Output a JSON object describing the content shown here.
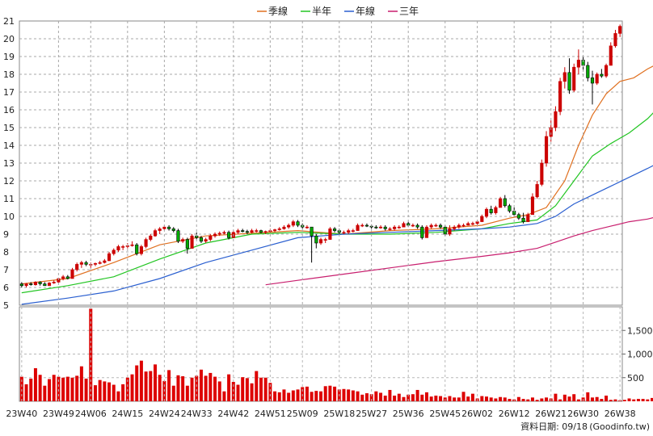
{
  "chart_data": [
    {
      "type": "candlestick",
      "legend": [
        {
          "name": "季線",
          "color": "#e07020"
        },
        {
          "name": "半年",
          "color": "#22c522"
        },
        {
          "name": "年線",
          "color": "#2a5fd0"
        },
        {
          "name": "三年",
          "color": "#c81e6e"
        }
      ],
      "ylim": [
        5,
        21
      ],
      "yticks": [
        "5",
        "6",
        "7",
        "8",
        "9",
        "10",
        "11",
        "12",
        "13",
        "14",
        "15",
        "16",
        "17",
        "18",
        "19",
        "20",
        "21"
      ],
      "xticks": [
        "23W40",
        "23W49",
        "24W06",
        "24W15",
        "24W24",
        "24W33",
        "24W42",
        "24W51",
        "25W09",
        "25W18",
        "25W27",
        "25W36",
        "25W45",
        "26W02",
        "26W12",
        "26W21",
        "26W30",
        "26W38"
      ],
      "grid": true,
      "up_color": "#cc0000",
      "down_color": "#00aa00",
      "candles": [
        {
          "o": 6.2,
          "h": 6.3,
          "l": 6.0,
          "c": 6.1
        },
        {
          "o": 6.1,
          "h": 6.25,
          "l": 6.0,
          "c": 6.2
        },
        {
          "o": 6.2,
          "h": 6.3,
          "l": 6.1,
          "c": 6.15
        },
        {
          "o": 6.15,
          "h": 6.35,
          "l": 6.1,
          "c": 6.3
        },
        {
          "o": 6.3,
          "h": 6.35,
          "l": 6.1,
          "c": 6.2
        },
        {
          "o": 6.2,
          "h": 6.3,
          "l": 6.1,
          "c": 6.1
        },
        {
          "o": 6.1,
          "h": 6.3,
          "l": 6.1,
          "c": 6.25
        },
        {
          "o": 6.25,
          "h": 6.4,
          "l": 6.2,
          "c": 6.3
        },
        {
          "o": 6.3,
          "h": 6.55,
          "l": 6.25,
          "c": 6.5
        },
        {
          "o": 6.5,
          "h": 6.7,
          "l": 6.4,
          "c": 6.6
        },
        {
          "o": 6.6,
          "h": 6.7,
          "l": 6.45,
          "c": 6.5
        },
        {
          "o": 6.5,
          "h": 7.1,
          "l": 6.5,
          "c": 7.0
        },
        {
          "o": 7.0,
          "h": 7.4,
          "l": 6.9,
          "c": 7.3
        },
        {
          "o": 7.3,
          "h": 7.5,
          "l": 7.1,
          "c": 7.4
        },
        {
          "o": 7.4,
          "h": 7.5,
          "l": 7.2,
          "c": 7.3
        },
        {
          "o": 7.3,
          "h": 7.4,
          "l": 7.1,
          "c": 7.3
        },
        {
          "o": 7.3,
          "h": 7.4,
          "l": 7.2,
          "c": 7.35
        },
        {
          "o": 7.35,
          "h": 7.5,
          "l": 7.3,
          "c": 7.4
        },
        {
          "o": 7.4,
          "h": 7.6,
          "l": 7.35,
          "c": 7.5
        },
        {
          "o": 7.5,
          "h": 8.0,
          "l": 7.5,
          "c": 7.9
        },
        {
          "o": 7.9,
          "h": 8.2,
          "l": 7.8,
          "c": 8.1
        },
        {
          "o": 8.1,
          "h": 8.4,
          "l": 8.0,
          "c": 8.3
        },
        {
          "o": 8.3,
          "h": 8.4,
          "l": 8.1,
          "c": 8.3
        },
        {
          "o": 8.3,
          "h": 8.5,
          "l": 8.2,
          "c": 8.35
        },
        {
          "o": 8.35,
          "h": 8.6,
          "l": 8.3,
          "c": 8.4
        },
        {
          "o": 8.4,
          "h": 8.5,
          "l": 7.8,
          "c": 7.9
        },
        {
          "o": 7.9,
          "h": 8.4,
          "l": 7.8,
          "c": 8.3
        },
        {
          "o": 8.3,
          "h": 8.8,
          "l": 8.2,
          "c": 8.7
        },
        {
          "o": 8.7,
          "h": 9.0,
          "l": 8.6,
          "c": 8.9
        },
        {
          "o": 8.9,
          "h": 9.3,
          "l": 8.85,
          "c": 9.2
        },
        {
          "o": 9.2,
          "h": 9.4,
          "l": 9.0,
          "c": 9.3
        },
        {
          "o": 9.3,
          "h": 9.5,
          "l": 9.2,
          "c": 9.4
        },
        {
          "o": 9.4,
          "h": 9.5,
          "l": 9.2,
          "c": 9.3
        },
        {
          "o": 9.3,
          "h": 9.4,
          "l": 9.1,
          "c": 9.2
        },
        {
          "o": 9.2,
          "h": 9.3,
          "l": 8.5,
          "c": 8.6
        },
        {
          "o": 8.6,
          "h": 8.8,
          "l": 8.5,
          "c": 8.7
        },
        {
          "o": 8.7,
          "h": 8.8,
          "l": 7.9,
          "c": 8.2
        },
        {
          "o": 8.2,
          "h": 9.0,
          "l": 8.2,
          "c": 8.9
        },
        {
          "o": 8.9,
          "h": 9.1,
          "l": 8.7,
          "c": 8.8
        },
        {
          "o": 8.8,
          "h": 8.9,
          "l": 8.5,
          "c": 8.6
        },
        {
          "o": 8.6,
          "h": 8.8,
          "l": 8.5,
          "c": 8.7
        },
        {
          "o": 8.7,
          "h": 9.0,
          "l": 8.6,
          "c": 8.9
        },
        {
          "o": 8.9,
          "h": 9.1,
          "l": 8.8,
          "c": 9.0
        },
        {
          "o": 9.0,
          "h": 9.15,
          "l": 8.9,
          "c": 9.05
        },
        {
          "o": 9.05,
          "h": 9.2,
          "l": 9.0,
          "c": 9.1
        },
        {
          "o": 9.1,
          "h": 9.2,
          "l": 8.7,
          "c": 8.8
        },
        {
          "o": 8.8,
          "h": 9.2,
          "l": 8.8,
          "c": 9.1
        },
        {
          "o": 9.1,
          "h": 9.3,
          "l": 9.0,
          "c": 9.2
        },
        {
          "o": 9.2,
          "h": 9.3,
          "l": 9.1,
          "c": 9.15
        },
        {
          "o": 9.15,
          "h": 9.25,
          "l": 9.0,
          "c": 9.1
        },
        {
          "o": 9.1,
          "h": 9.3,
          "l": 9.05,
          "c": 9.2
        },
        {
          "o": 9.2,
          "h": 9.3,
          "l": 9.1,
          "c": 9.2
        },
        {
          "o": 9.2,
          "h": 9.25,
          "l": 9.05,
          "c": 9.1
        },
        {
          "o": 9.1,
          "h": 9.2,
          "l": 9.0,
          "c": 9.15
        },
        {
          "o": 9.15,
          "h": 9.3,
          "l": 9.1,
          "c": 9.2
        },
        {
          "o": 9.2,
          "h": 9.3,
          "l": 9.1,
          "c": 9.25
        },
        {
          "o": 9.25,
          "h": 9.4,
          "l": 9.2,
          "c": 9.3
        },
        {
          "o": 9.3,
          "h": 9.5,
          "l": 9.25,
          "c": 9.4
        },
        {
          "o": 9.4,
          "h": 9.6,
          "l": 9.3,
          "c": 9.5
        },
        {
          "o": 9.5,
          "h": 9.8,
          "l": 9.4,
          "c": 9.7
        },
        {
          "o": 9.7,
          "h": 9.8,
          "l": 9.4,
          "c": 9.5
        },
        {
          "o": 9.5,
          "h": 9.6,
          "l": 9.3,
          "c": 9.4
        },
        {
          "o": 9.4,
          "h": 9.5,
          "l": 9.3,
          "c": 9.4
        },
        {
          "o": 9.4,
          "h": 9.4,
          "l": 7.4,
          "c": 8.9
        },
        {
          "o": 8.9,
          "h": 9.0,
          "l": 8.2,
          "c": 8.5
        },
        {
          "o": 8.5,
          "h": 8.8,
          "l": 8.4,
          "c": 8.7
        },
        {
          "o": 8.7,
          "h": 8.8,
          "l": 8.5,
          "c": 8.7
        },
        {
          "o": 8.7,
          "h": 9.4,
          "l": 8.7,
          "c": 9.3
        },
        {
          "o": 9.3,
          "h": 9.4,
          "l": 9.1,
          "c": 9.2
        },
        {
          "o": 9.2,
          "h": 9.3,
          "l": 9.0,
          "c": 9.1
        },
        {
          "o": 9.1,
          "h": 9.2,
          "l": 9.0,
          "c": 9.1
        },
        {
          "o": 9.1,
          "h": 9.3,
          "l": 9.0,
          "c": 9.2
        },
        {
          "o": 9.2,
          "h": 9.3,
          "l": 9.1,
          "c": 9.2
        },
        {
          "o": 9.2,
          "h": 9.6,
          "l": 9.2,
          "c": 9.5
        },
        {
          "o": 9.5,
          "h": 9.6,
          "l": 9.4,
          "c": 9.5
        },
        {
          "o": 9.5,
          "h": 9.6,
          "l": 9.4,
          "c": 9.45
        },
        {
          "o": 9.45,
          "h": 9.55,
          "l": 9.3,
          "c": 9.4
        },
        {
          "o": 9.4,
          "h": 9.5,
          "l": 9.3,
          "c": 9.35
        },
        {
          "o": 9.35,
          "h": 9.5,
          "l": 9.3,
          "c": 9.4
        },
        {
          "o": 9.4,
          "h": 9.5,
          "l": 9.2,
          "c": 9.3
        },
        {
          "o": 9.3,
          "h": 9.4,
          "l": 9.2,
          "c": 9.3
        },
        {
          "o": 9.3,
          "h": 9.5,
          "l": 9.2,
          "c": 9.4
        },
        {
          "o": 9.4,
          "h": 9.5,
          "l": 9.3,
          "c": 9.4
        },
        {
          "o": 9.4,
          "h": 9.7,
          "l": 9.4,
          "c": 9.6
        },
        {
          "o": 9.6,
          "h": 9.7,
          "l": 9.4,
          "c": 9.5
        },
        {
          "o": 9.5,
          "h": 9.6,
          "l": 9.4,
          "c": 9.5
        },
        {
          "o": 9.5,
          "h": 9.6,
          "l": 9.3,
          "c": 9.4
        },
        {
          "o": 9.4,
          "h": 9.5,
          "l": 8.7,
          "c": 8.8
        },
        {
          "o": 8.8,
          "h": 9.5,
          "l": 8.8,
          "c": 9.4
        },
        {
          "o": 9.4,
          "h": 9.6,
          "l": 9.3,
          "c": 9.5
        },
        {
          "o": 9.5,
          "h": 9.6,
          "l": 9.4,
          "c": 9.5
        },
        {
          "o": 9.5,
          "h": 9.6,
          "l": 9.3,
          "c": 9.4
        },
        {
          "o": 9.4,
          "h": 9.5,
          "l": 8.9,
          "c": 9.0
        },
        {
          "o": 9.0,
          "h": 9.5,
          "l": 8.9,
          "c": 9.3
        },
        {
          "o": 9.3,
          "h": 9.5,
          "l": 9.2,
          "c": 9.4
        },
        {
          "o": 9.4,
          "h": 9.6,
          "l": 9.3,
          "c": 9.5
        },
        {
          "o": 9.5,
          "h": 9.6,
          "l": 9.4,
          "c": 9.5
        },
        {
          "o": 9.5,
          "h": 9.7,
          "l": 9.5,
          "c": 9.6
        },
        {
          "o": 9.6,
          "h": 9.7,
          "l": 9.5,
          "c": 9.6
        },
        {
          "o": 9.6,
          "h": 9.8,
          "l": 9.5,
          "c": 9.7
        },
        {
          "o": 9.7,
          "h": 10.1,
          "l": 9.7,
          "c": 10.0
        },
        {
          "o": 10.0,
          "h": 10.5,
          "l": 9.9,
          "c": 10.4
        },
        {
          "o": 10.4,
          "h": 10.6,
          "l": 10.1,
          "c": 10.2
        },
        {
          "o": 10.2,
          "h": 10.6,
          "l": 10.1,
          "c": 10.5
        },
        {
          "o": 10.5,
          "h": 11.1,
          "l": 10.5,
          "c": 11.0
        },
        {
          "o": 11.0,
          "h": 11.2,
          "l": 10.5,
          "c": 10.6
        },
        {
          "o": 10.6,
          "h": 10.7,
          "l": 10.2,
          "c": 10.3
        },
        {
          "o": 10.3,
          "h": 10.5,
          "l": 10.0,
          "c": 10.1
        },
        {
          "o": 10.1,
          "h": 10.2,
          "l": 9.8,
          "c": 9.9
        },
        {
          "o": 9.9,
          "h": 10.2,
          "l": 9.6,
          "c": 9.7
        },
        {
          "o": 9.7,
          "h": 10.2,
          "l": 9.7,
          "c": 10.1
        },
        {
          "o": 10.1,
          "h": 11.3,
          "l": 10.1,
          "c": 11.1
        },
        {
          "o": 11.1,
          "h": 12.0,
          "l": 11.0,
          "c": 11.8
        },
        {
          "o": 11.8,
          "h": 13.2,
          "l": 11.7,
          "c": 13.0
        },
        {
          "o": 13.0,
          "h": 14.8,
          "l": 12.8,
          "c": 14.5
        },
        {
          "o": 14.5,
          "h": 15.4,
          "l": 14.2,
          "c": 15.0
        },
        {
          "o": 15.0,
          "h": 16.2,
          "l": 14.8,
          "c": 15.9
        },
        {
          "o": 15.9,
          "h": 17.8,
          "l": 15.7,
          "c": 17.6
        },
        {
          "o": 17.6,
          "h": 18.4,
          "l": 17.2,
          "c": 18.1
        },
        {
          "o": 18.1,
          "h": 18.9,
          "l": 16.9,
          "c": 17.1
        },
        {
          "o": 17.1,
          "h": 18.6,
          "l": 17.0,
          "c": 18.4
        },
        {
          "o": 18.4,
          "h": 19.4,
          "l": 18.0,
          "c": 18.8
        },
        {
          "o": 18.8,
          "h": 19.0,
          "l": 18.2,
          "c": 18.5
        },
        {
          "o": 18.5,
          "h": 18.7,
          "l": 17.6,
          "c": 17.8
        },
        {
          "o": 17.8,
          "h": 18.2,
          "l": 16.3,
          "c": 17.5
        },
        {
          "o": 17.5,
          "h": 18.1,
          "l": 17.4,
          "c": 18.0
        },
        {
          "o": 18.0,
          "h": 18.3,
          "l": 17.8,
          "c": 17.9
        },
        {
          "o": 17.9,
          "h": 18.6,
          "l": 17.8,
          "c": 18.5
        },
        {
          "o": 18.5,
          "h": 19.8,
          "l": 18.5,
          "c": 19.6
        },
        {
          "o": 19.6,
          "h": 20.5,
          "l": 19.5,
          "c": 20.3
        },
        {
          "o": 20.3,
          "h": 20.8,
          "l": 20.1,
          "c": 20.7
        }
      ],
      "ma_lines": [
        {
          "name": "季線",
          "color": "#e07020",
          "x": [
            0,
            10,
            20,
            30,
            40,
            50,
            60,
            70,
            80,
            90,
            100,
            106,
            110,
            114,
            118,
            121,
            124,
            127,
            130,
            133,
            136,
            139
          ],
          "y": [
            6.2,
            6.5,
            7.4,
            8.4,
            8.9,
            9.05,
            9.2,
            9.0,
            9.2,
            9.3,
            9.5,
            9.9,
            10.1,
            10.5,
            12.0,
            14.0,
            15.7,
            16.9,
            17.6,
            17.8,
            18.3,
            18.7
          ]
        },
        {
          "name": "半年",
          "color": "#22c522",
          "x": [
            0,
            10,
            20,
            30,
            40,
            50,
            60,
            70,
            80,
            90,
            100,
            106,
            112,
            116,
            120,
            124,
            128,
            132,
            136,
            139
          ],
          "y": [
            5.7,
            6.1,
            6.6,
            7.6,
            8.5,
            9.0,
            9.1,
            9.0,
            9.0,
            9.1,
            9.3,
            9.6,
            9.8,
            10.6,
            12.0,
            13.4,
            14.1,
            14.7,
            15.5,
            16.3
          ]
        },
        {
          "name": "年線",
          "color": "#2a5fd0",
          "x": [
            0,
            10,
            20,
            30,
            40,
            50,
            60,
            70,
            80,
            90,
            100,
            106,
            112,
            116,
            120,
            124,
            128,
            132,
            136,
            139
          ],
          "y": [
            5.05,
            5.4,
            5.8,
            6.5,
            7.4,
            8.1,
            8.8,
            9.0,
            9.1,
            9.2,
            9.3,
            9.4,
            9.6,
            10.0,
            10.7,
            11.2,
            11.7,
            12.2,
            12.7,
            13.1
          ]
        },
        {
          "name": "三年",
          "color": "#c81e6e",
          "x": [
            53,
            60,
            70,
            80,
            90,
            100,
            106,
            112,
            116,
            120,
            124,
            128,
            132,
            136,
            139
          ],
          "y": [
            6.15,
            6.4,
            6.75,
            7.1,
            7.45,
            7.75,
            7.95,
            8.2,
            8.55,
            8.9,
            9.2,
            9.45,
            9.7,
            9.85,
            10.05
          ]
        }
      ]
    },
    {
      "type": "bar",
      "ylim": [
        0,
        2000
      ],
      "yticks": [
        "500",
        "1,000",
        "1,500"
      ],
      "color": "#dd0000",
      "values": [
        520,
        360,
        480,
        700,
        560,
        330,
        470,
        560,
        520,
        500,
        520,
        500,
        540,
        740,
        480,
        1960,
        340,
        450,
        420,
        400,
        350,
        210,
        360,
        500,
        570,
        760,
        860,
        630,
        640,
        780,
        560,
        430,
        660,
        330,
        550,
        530,
        330,
        500,
        540,
        670,
        540,
        600,
        520,
        420,
        210,
        570,
        410,
        350,
        510,
        490,
        380,
        640,
        500,
        500,
        390,
        210,
        190,
        250,
        180,
        230,
        250,
        300,
        310,
        200,
        220,
        210,
        320,
        330,
        310,
        250,
        260,
        250,
        230,
        210,
        140,
        170,
        150,
        210,
        180,
        120,
        240,
        120,
        160,
        90,
        140,
        150,
        240,
        140,
        190,
        100,
        120,
        110,
        80,
        110,
        80,
        80,
        200,
        100,
        160,
        60,
        110,
        100,
        80,
        60,
        90,
        80,
        50,
        40,
        90,
        50,
        40,
        80,
        30,
        60,
        80,
        60,
        160,
        40,
        140,
        100,
        150,
        40,
        80,
        190,
        80,
        90,
        50,
        120,
        30,
        40,
        20,
        30,
        60,
        40,
        50,
        50,
        40,
        70,
        30,
        170
      ]
    }
  ],
  "footer": {
    "date_label": "資料日期: 09/18",
    "source": "(Goodinfo.tw)"
  }
}
